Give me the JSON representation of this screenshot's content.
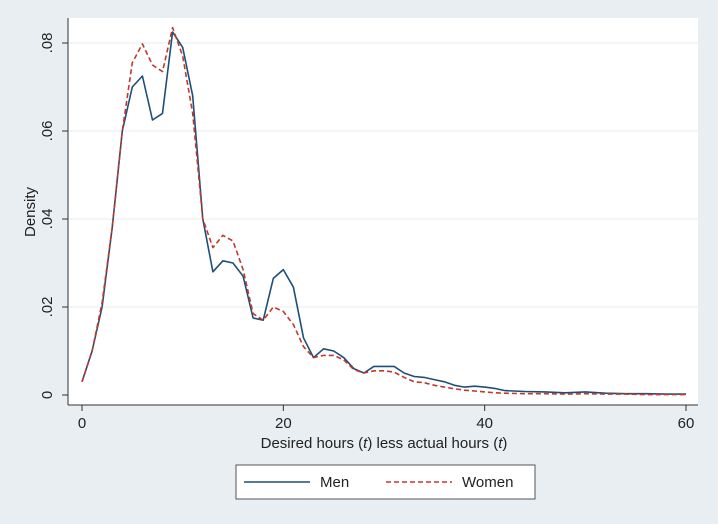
{
  "chart_data": {
    "type": "line",
    "title": "",
    "xlabel_parts": [
      "Desired hours (",
      "t",
      ") less actual hours (",
      "t",
      ")"
    ],
    "ylabel": "Density",
    "xlim": [
      0,
      60
    ],
    "ylim": [
      0,
      0.085
    ],
    "xticks": [
      0,
      20,
      40,
      60
    ],
    "xtick_labels": [
      "0",
      "20",
      "40",
      "60"
    ],
    "yticks": [
      0,
      0.02,
      0.04,
      0.06,
      0.08
    ],
    "ytick_labels": [
      "0",
      ".02",
      ".04",
      ".06",
      ".08"
    ],
    "grid": true,
    "legend_position": "bottom",
    "series": [
      {
        "name": "Men",
        "color": "#1f4e79",
        "dash": "solid",
        "x": [
          0,
          1,
          2,
          3,
          4,
          5,
          6,
          7,
          8,
          9,
          10,
          11,
          12,
          13,
          14,
          15,
          16,
          17,
          18,
          19,
          20,
          21,
          22,
          23,
          24,
          25,
          26,
          27,
          28,
          29,
          30,
          31,
          32,
          33,
          34,
          35,
          36,
          37,
          38,
          39,
          40,
          41,
          42,
          44,
          46,
          48,
          50,
          52,
          54,
          56,
          58,
          60
        ],
        "y": [
          0.003,
          0.01,
          0.02,
          0.038,
          0.06,
          0.07,
          0.0725,
          0.0625,
          0.064,
          0.0825,
          0.079,
          0.068,
          0.04,
          0.028,
          0.0305,
          0.03,
          0.027,
          0.0175,
          0.017,
          0.0265,
          0.0285,
          0.0245,
          0.013,
          0.0085,
          0.0105,
          0.01,
          0.0085,
          0.006,
          0.005,
          0.0065,
          0.0065,
          0.0065,
          0.005,
          0.0042,
          0.004,
          0.0035,
          0.003,
          0.0022,
          0.0018,
          0.002,
          0.0018,
          0.0015,
          0.001,
          0.0008,
          0.0007,
          0.0005,
          0.0007,
          0.0004,
          0.0003,
          0.0003,
          0.0002,
          0.0002
        ]
      },
      {
        "name": "Women",
        "color": "#c0392b",
        "dash": "dashed",
        "x": [
          0,
          1,
          2,
          3,
          4,
          5,
          6,
          7,
          8,
          9,
          10,
          11,
          12,
          13,
          14,
          15,
          16,
          17,
          18,
          19,
          20,
          21,
          22,
          23,
          24,
          25,
          26,
          27,
          28,
          29,
          30,
          31,
          32,
          33,
          34,
          35,
          36,
          37,
          38,
          39,
          40,
          41,
          42,
          44,
          46,
          48,
          50,
          52,
          54,
          56,
          58,
          60
        ],
        "y": [
          0.003,
          0.01,
          0.021,
          0.038,
          0.06,
          0.0755,
          0.0798,
          0.075,
          0.0735,
          0.0835,
          0.077,
          0.064,
          0.04,
          0.0335,
          0.0363,
          0.035,
          0.0285,
          0.0185,
          0.017,
          0.02,
          0.019,
          0.016,
          0.011,
          0.0085,
          0.009,
          0.009,
          0.008,
          0.0058,
          0.005,
          0.0055,
          0.0055,
          0.0052,
          0.004,
          0.003,
          0.0028,
          0.0022,
          0.0018,
          0.0014,
          0.0011,
          0.0009,
          0.0007,
          0.0005,
          0.0004,
          0.0003,
          0.0003,
          0.0002,
          0.0003,
          0.0002,
          0.0002,
          0.0001,
          0.0001,
          0.0001
        ]
      }
    ]
  }
}
